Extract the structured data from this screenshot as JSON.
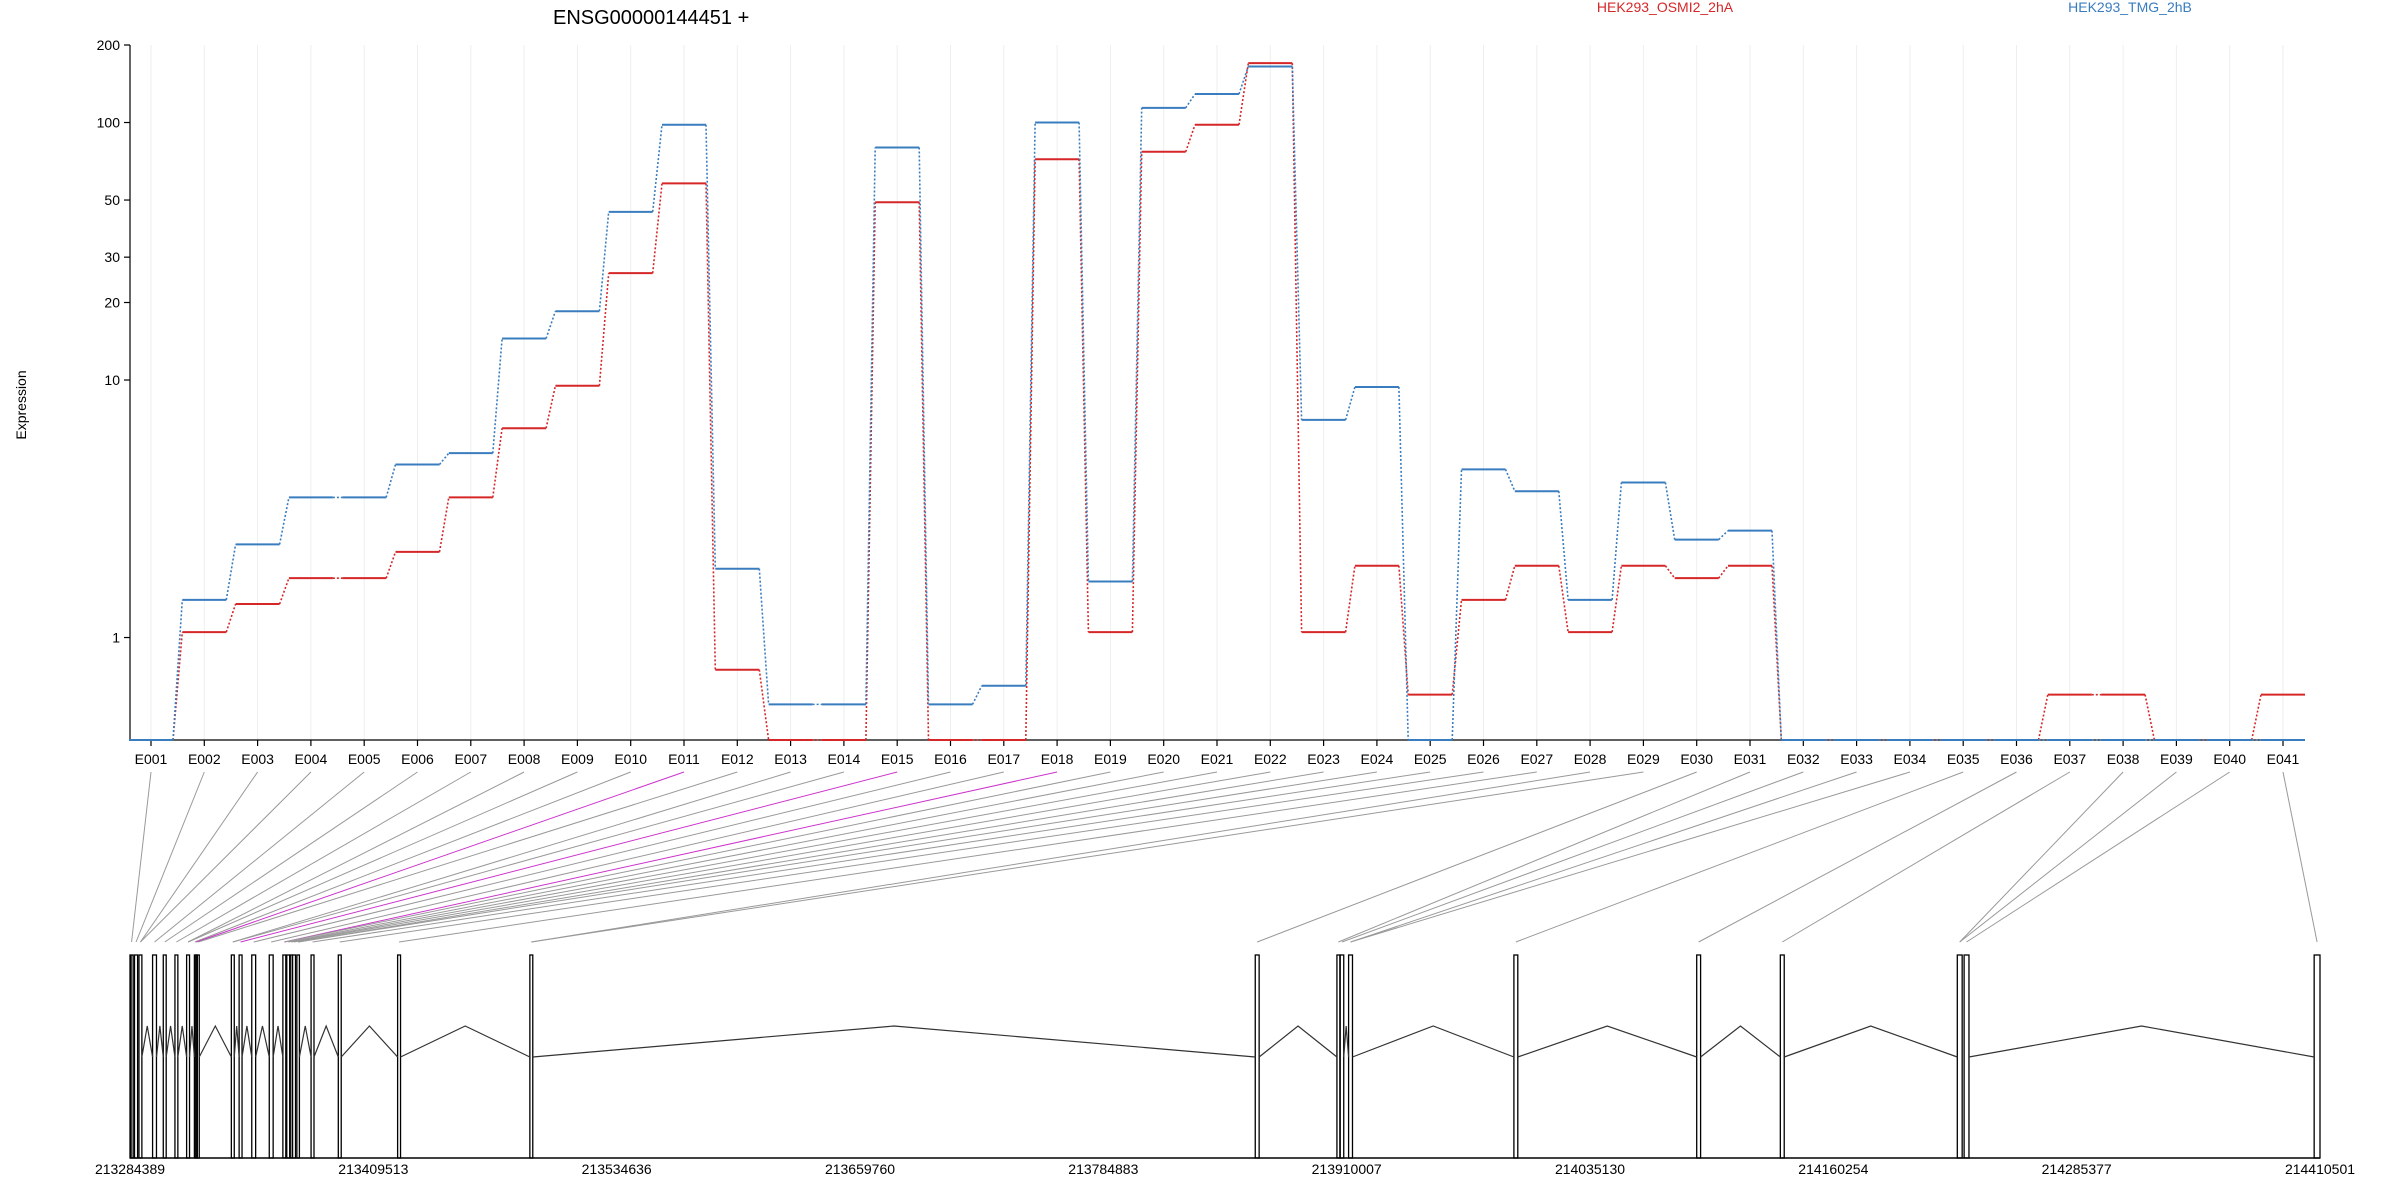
{
  "chart_data": {
    "type": "line",
    "title": "ENSG00000144451 +",
    "ylabel": "Expression",
    "y_scale": "log",
    "ylim": [
      0.4,
      200
    ],
    "yticks": [
      "1",
      "10",
      "20",
      "30",
      "50",
      "100",
      "200"
    ],
    "grid": "vertical, light",
    "legend_position": "top-right",
    "categories": [
      "E001",
      "E002",
      "E003",
      "E004",
      "E005",
      "E006",
      "E007",
      "E008",
      "E009",
      "E010",
      "E011",
      "E012",
      "E013",
      "E014",
      "E015",
      "E016",
      "E017",
      "E018",
      "E019",
      "E020",
      "E021",
      "E022",
      "E023",
      "E024",
      "E025",
      "E026",
      "E027",
      "E028",
      "E029",
      "E030",
      "E031",
      "E032",
      "E033",
      "E034",
      "E035",
      "E036",
      "E037",
      "E038",
      "E039",
      "E040",
      "E041"
    ],
    "series": [
      {
        "name": "HEK293_OSMI2_2hA",
        "color": "#d62728",
        "values": [
          0.4,
          1.05,
          1.35,
          1.7,
          1.7,
          2.15,
          3.5,
          6.5,
          9.5,
          26,
          58,
          0.75,
          0.4,
          0.4,
          49,
          0.4,
          0.4,
          72,
          1.05,
          77,
          98,
          170,
          1.05,
          1.9,
          0.6,
          1.4,
          1.9,
          1.05,
          1.9,
          1.7,
          1.9,
          0.4,
          0.4,
          0.4,
          0.4,
          0.4,
          0.6,
          0.6,
          0.4,
          0.4,
          0.6
        ]
      },
      {
        "name": "HEK293_TMG_2hB",
        "color": "#3a7dbf",
        "values": [
          0.4,
          1.4,
          2.3,
          3.5,
          3.5,
          4.7,
          5.2,
          14.5,
          18.5,
          45,
          98,
          1.85,
          0.55,
          0.55,
          80,
          0.55,
          0.65,
          100,
          1.65,
          114,
          129,
          165,
          7,
          9.4,
          0.4,
          4.5,
          3.7,
          1.4,
          4,
          2.4,
          2.6,
          0.4,
          0.4,
          0.4,
          0.4,
          0.4,
          0.4,
          0.4,
          0.4,
          0.4,
          0.4
        ]
      }
    ],
    "genomic_axis": {
      "ticks": [
        "213284389",
        "213409513",
        "213534636",
        "213659760",
        "213784883",
        "213910007",
        "214035130",
        "214160254",
        "214285377",
        "214410501"
      ],
      "start": 213284389,
      "end": 214410501,
      "exon_starts": [
        213284389,
        213286700,
        213289000,
        213296000,
        213301500,
        213307500,
        213313500,
        213317500,
        213318200,
        213319000,
        213336500,
        213340500,
        213347000,
        213356000,
        213363000,
        213365000,
        213366800,
        213368000,
        213370200,
        213377500,
        213391500,
        213422000,
        213490000,
        213863000,
        213905000,
        213906700,
        213911000,
        213996000,
        214090000,
        214133000,
        214224000,
        214227500,
        214407500
      ],
      "exon_ends": [
        213286000,
        213288300,
        213290500,
        213298000,
        213303000,
        213309000,
        213315000,
        213318000,
        213318800,
        213320000,
        213338000,
        213342000,
        213349000,
        213358000,
        213364500,
        213366500,
        213367800,
        213369500,
        213371500,
        213379000,
        213393000,
        213423500,
        213491500,
        213865000,
        213906500,
        213908500,
        213913000,
        213998000,
        214092000,
        214135000,
        214226500,
        214230000,
        214410501
      ],
      "highlight_exons": [
        "E011",
        "E015",
        "E018"
      ]
    }
  }
}
